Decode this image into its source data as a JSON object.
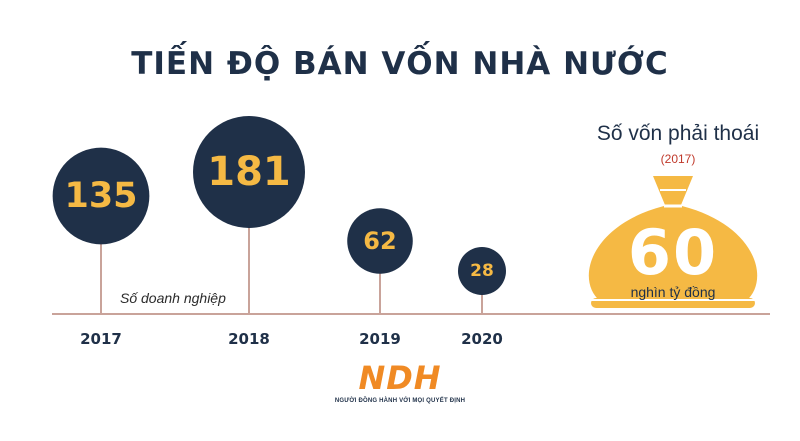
{
  "title": "TIẾN ĐỘ BÁN VỐN NHÀ NƯỚC",
  "chart_data": {
    "type": "bubble",
    "series_label": "Số doanh nghiệp",
    "categories": [
      "2017",
      "2018",
      "2019",
      "2020"
    ],
    "values": [
      135,
      181,
      62,
      28
    ]
  },
  "bag": {
    "title": "Số vốn phải thoái",
    "subtitle": "(2017)",
    "value": "60",
    "unit": "nghìn tỷ đồng"
  },
  "logo": {
    "text": "NDH",
    "tagline": "NGƯỜI ĐỒNG HÀNH VỚI MỌI QUYẾT ĐỊNH"
  },
  "colors": {
    "navy": "#1f3048",
    "gold": "#f5b944",
    "stem": "#c9a39a",
    "baseline": "#c9a39a",
    "subtitle": "#c0392b",
    "logo": "#f08a24"
  }
}
